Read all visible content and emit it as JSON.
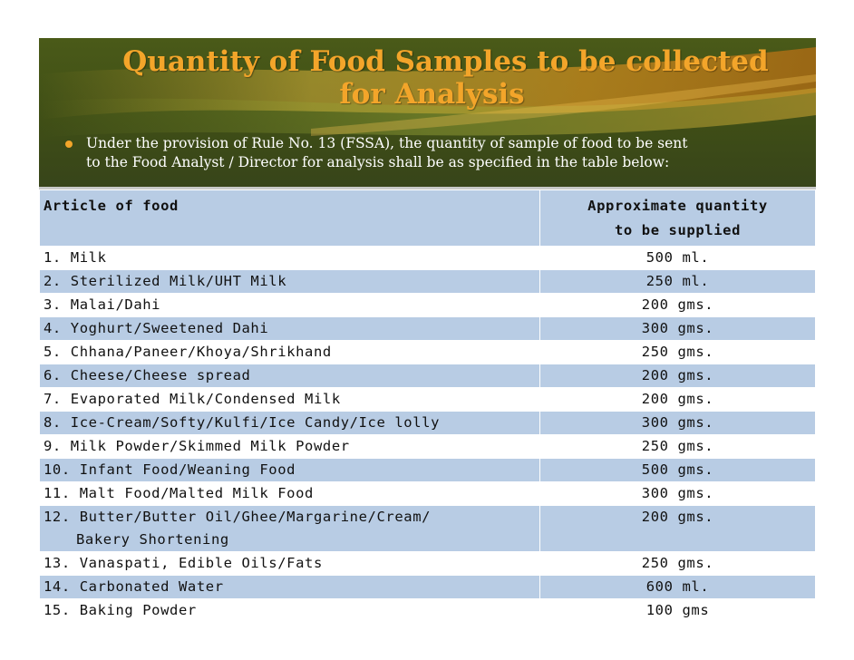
{
  "title": {
    "line1": "Quantity of Food Samples to be collected",
    "line2": "for Analysis"
  },
  "bullet": {
    "line1": "Under the provision of Rule No. 13 (FSSA), the quantity of sample of food to be sent",
    "line2": "to the Food Analyst / Director for analysis shall be as specified in the table below:"
  },
  "table": {
    "header_article": "Article of food",
    "header_qty_line1": "Approximate quantity",
    "header_qty_line2": "to be supplied",
    "rows": [
      {
        "article": "1. Milk",
        "qty": "500 ml."
      },
      {
        "article": "2. Sterilized Milk/UHT Milk",
        "qty": "250 ml."
      },
      {
        "article": "3. Malai/Dahi",
        "qty": "200 gms."
      },
      {
        "article": "4. Yoghurt/Sweetened Dahi",
        "qty": "300 gms."
      },
      {
        "article": "5. Chhana/Paneer/Khoya/Shrikhand",
        "qty": "250 gms."
      },
      {
        "article": "6. Cheese/Cheese spread",
        "qty": "200 gms."
      },
      {
        "article": "7. Evaporated Milk/Condensed Milk",
        "qty": "200 gms."
      },
      {
        "article": "8. Ice-Cream/Softy/Kulfi/Ice Candy/Ice lolly",
        "qty": "300 gms."
      },
      {
        "article": "9. Milk Powder/Skimmed Milk Powder",
        "qty": "250 gms."
      },
      {
        "article": "10. Infant Food/Weaning Food",
        "qty": "500 gms."
      },
      {
        "article": "11. Malt Food/Malted Milk Food",
        "qty": "300 gms."
      },
      {
        "article": "12. Butter/Butter Oil/Ghee/Margarine/Cream/",
        "article_line2": "Bakery Shortening",
        "qty": "200 gms."
      },
      {
        "article": "13. Vanaspati, Edible Oils/Fats",
        "qty": "250 gms."
      },
      {
        "article": "14. Carbonated Water",
        "qty": "600 ml."
      },
      {
        "article": "15. Baking Powder",
        "qty": "100 gms"
      }
    ]
  },
  "colors": {
    "banner": "#3f4e16",
    "title": "#f3a52a",
    "row_alt": "#b8cce4"
  }
}
